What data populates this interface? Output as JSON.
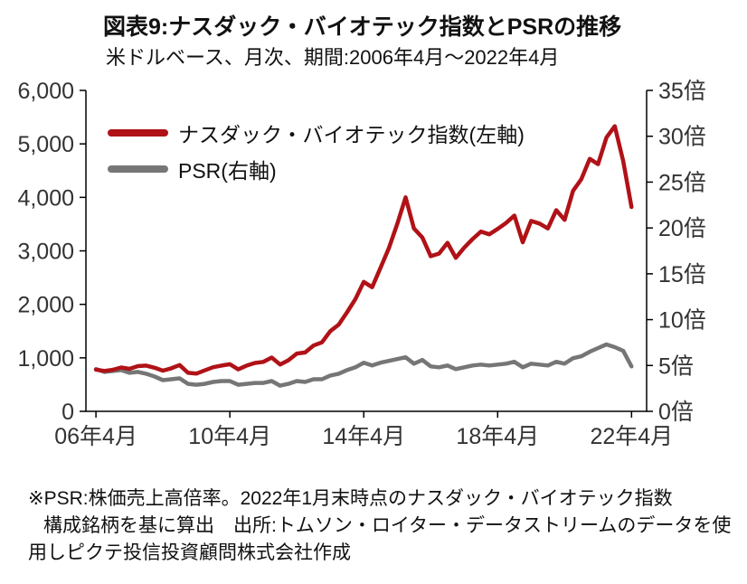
{
  "figure": {
    "title": "図表9:ナスダック・バイオテック指数とPSRの推移",
    "subtitle": "米ドルベース、月次、期間:2006年4月〜2022年4月",
    "footnote_lines": [
      "※PSR:株価売上高倍率。2022年1月末時点のナスダック・バイオテック指数",
      "構成銘柄を基に算出　出所:トムソン・ロイター・データストリームのデータを使",
      "用しピクテ投信投資顧問株式会社作成"
    ]
  },
  "chart_data": {
    "type": "line",
    "title": "図表9:ナスダック・バイオテック指数とPSRの推移",
    "subtitle": "米ドルベース、月次、期間:2006年4月〜2022年4月",
    "grid": false,
    "legend_position": "top-left",
    "x_axis": {
      "min": 2005.95,
      "max": 2022.7,
      "tick_years": [
        2006.25,
        2010.25,
        2014.25,
        2018.25,
        2022.25
      ],
      "tick_labels": [
        "06年4月",
        "10年4月",
        "14年4月",
        "18年4月",
        "22年4月"
      ]
    },
    "left_axis": {
      "min": 0,
      "max": 6000,
      "ticks": [
        0,
        1000,
        2000,
        3000,
        4000,
        5000,
        6000
      ]
    },
    "right_axis": {
      "min": 0,
      "max": 35,
      "ticks": [
        0,
        5,
        10,
        15,
        20,
        25,
        30,
        35
      ],
      "suffix": "倍"
    },
    "axis_color": "#000000",
    "tick_label_color": "#333333",
    "x": [
      2006.25,
      2006.5,
      2006.75,
      2007,
      2007.25,
      2007.5,
      2007.75,
      2008,
      2008.25,
      2008.5,
      2008.75,
      2009,
      2009.25,
      2009.5,
      2009.75,
      2010,
      2010.25,
      2010.5,
      2010.75,
      2011,
      2011.25,
      2011.5,
      2011.75,
      2012,
      2012.25,
      2012.5,
      2012.75,
      2013,
      2013.25,
      2013.5,
      2013.75,
      2014,
      2014.25,
      2014.5,
      2014.75,
      2015,
      2015.25,
      2015.5,
      2015.75,
      2016,
      2016.25,
      2016.5,
      2016.75,
      2017,
      2017.25,
      2017.5,
      2017.75,
      2018,
      2018.25,
      2018.5,
      2018.75,
      2019,
      2019.25,
      2019.5,
      2019.75,
      2020,
      2020.25,
      2020.5,
      2020.75,
      2021,
      2021.25,
      2021.5,
      2021.75,
      2022,
      2022.25
    ],
    "series": [
      {
        "name": "ナスダック・バイオテック指数(左軸)",
        "axis": "left",
        "color": "#b01217",
        "values": [
          780,
          755,
          775,
          820,
          795,
          845,
          855,
          815,
          760,
          805,
          865,
          720,
          705,
          765,
          825,
          855,
          880,
          785,
          855,
          905,
          925,
          1005,
          875,
          955,
          1080,
          1100,
          1230,
          1290,
          1500,
          1620,
          1850,
          2100,
          2420,
          2320,
          2680,
          3050,
          3500,
          4000,
          3420,
          3250,
          2900,
          2950,
          3150,
          2870,
          3060,
          3220,
          3360,
          3310,
          3410,
          3520,
          3660,
          3160,
          3560,
          3510,
          3420,
          3760,
          3580,
          4120,
          4340,
          4720,
          4620,
          5120,
          5330,
          4680,
          3820
        ]
      },
      {
        "name": "PSR(右軸)",
        "axis": "right",
        "color": "#767676",
        "unit": "倍",
        "values": [
          4.6,
          4.3,
          4.4,
          4.5,
          4.2,
          4.3,
          4.1,
          3.8,
          3.4,
          3.5,
          3.6,
          3.0,
          2.9,
          3.0,
          3.2,
          3.3,
          3.3,
          2.9,
          3.0,
          3.1,
          3.1,
          3.3,
          2.8,
          3.0,
          3.3,
          3.2,
          3.5,
          3.5,
          3.9,
          4.1,
          4.5,
          4.8,
          5.3,
          5.0,
          5.3,
          5.5,
          5.7,
          5.9,
          5.2,
          5.6,
          4.9,
          4.8,
          5.0,
          4.6,
          4.8,
          5.0,
          5.1,
          5.0,
          5.1,
          5.2,
          5.4,
          4.8,
          5.2,
          5.1,
          5.0,
          5.4,
          5.2,
          5.8,
          6.0,
          6.5,
          6.9,
          7.3,
          7.0,
          6.6,
          4.9
        ]
      }
    ]
  }
}
